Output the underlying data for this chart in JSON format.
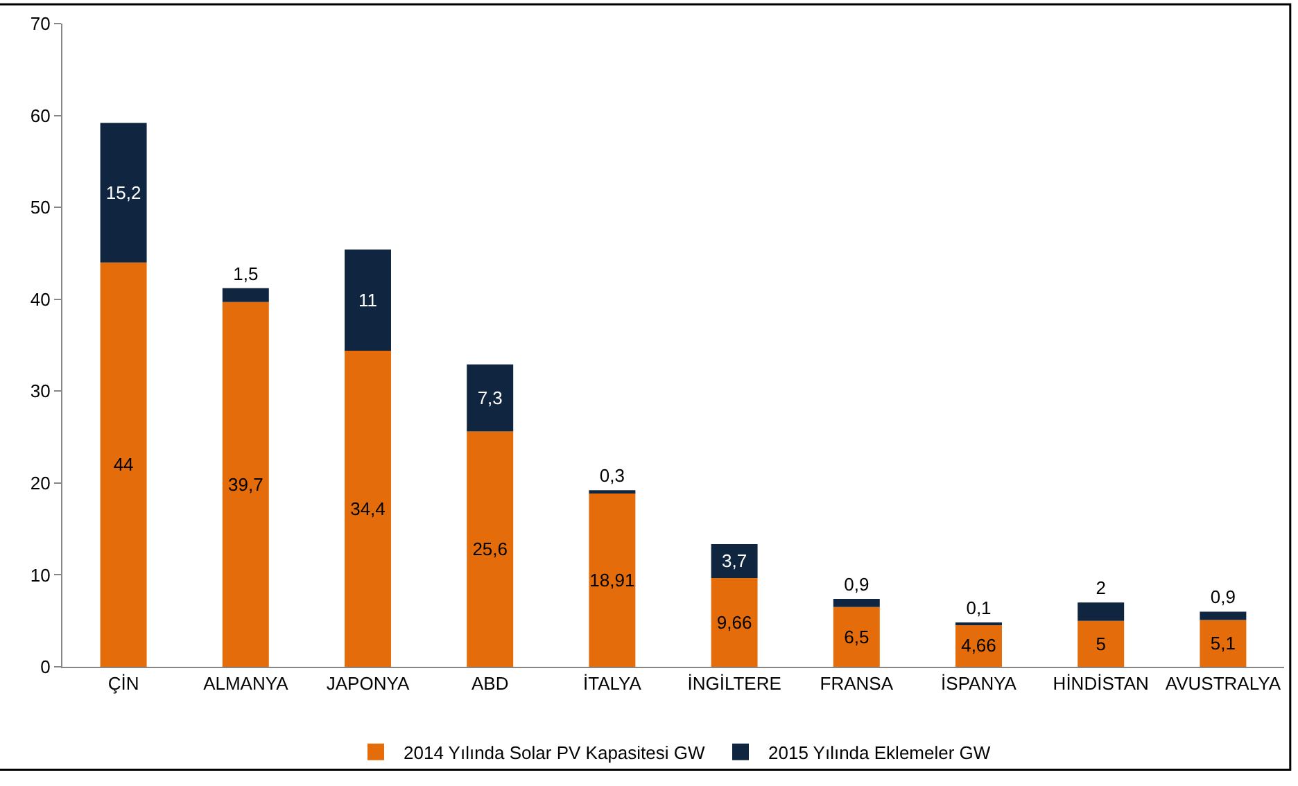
{
  "chart_data": {
    "type": "bar",
    "stacked": true,
    "categories": [
      "ÇİN",
      "ALMANYA",
      "JAPONYA",
      "ABD",
      "İTALYA",
      "İNGİLTERE",
      "FRANSA",
      "İSPANYA",
      "HİNDİSTAN",
      "AVUSTRALYA"
    ],
    "series": [
      {
        "name": "2014 Yılında Solar PV Kapasitesi GW",
        "color": "#e46c0a",
        "values": [
          44,
          39.7,
          34.4,
          25.6,
          18.91,
          9.66,
          6.5,
          4.66,
          5,
          5.1
        ],
        "value_labels": [
          "44",
          "39,7",
          "34,4",
          "25,6",
          "18,91",
          "9,66",
          "6,5",
          "4,66",
          "5",
          "5,1"
        ]
      },
      {
        "name": "2015 Yılında Eklemeler GW",
        "color": "#10253f",
        "values": [
          15.2,
          1.5,
          11,
          7.3,
          0.3,
          3.7,
          0.9,
          0.1,
          2,
          0.9
        ],
        "value_labels": [
          "15,2",
          "1,5",
          "11",
          "7,3",
          "0,3",
          "3,7",
          "0,9",
          "0,1",
          "2",
          "0,9"
        ]
      }
    ],
    "ylim": [
      0,
      70
    ],
    "yticks": [
      0,
      10,
      20,
      30,
      40,
      50,
      60,
      70
    ],
    "legend": "bottom"
  }
}
